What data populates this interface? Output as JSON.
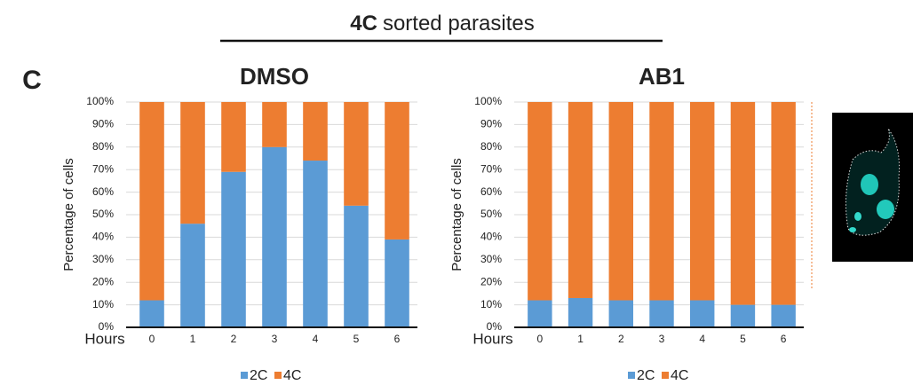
{
  "header": {
    "bold": "4C",
    "text": "sorted parasites"
  },
  "panel_label": "C",
  "chart_data": [
    {
      "type": "stacked_bar",
      "title": "DMSO",
      "y_label": "Percentage of cells",
      "x_label": "Hours",
      "categories": [
        "0",
        "1",
        "2",
        "3",
        "4",
        "5",
        "6"
      ],
      "series": [
        {
          "name": "2C",
          "color": "#5b9bd5",
          "values": [
            12,
            46,
            69,
            80,
            74,
            54,
            39
          ]
        },
        {
          "name": "4C",
          "color": "#ed7d31",
          "values": [
            88,
            54,
            31,
            20,
            26,
            46,
            61
          ]
        }
      ],
      "ylim": [
        0,
        100
      ],
      "yticks": [
        {
          "value": 0,
          "label": "0%"
        },
        {
          "value": 10,
          "label": "10%"
        },
        {
          "value": 20,
          "label": "20%"
        },
        {
          "value": 30,
          "label": "30%"
        },
        {
          "value": 40,
          "label": "40%"
        },
        {
          "value": 50,
          "label": "50%"
        },
        {
          "value": 60,
          "label": "60%"
        },
        {
          "value": 70,
          "label": "70%"
        },
        {
          "value": 80,
          "label": "80%"
        },
        {
          "value": 90,
          "label": "90%"
        },
        {
          "value": 100,
          "label": "100%"
        }
      ],
      "grid": true,
      "legend": "bottom"
    },
    {
      "type": "stacked_bar",
      "title": "AB1",
      "y_label": "Percentage of cells",
      "x_label": "Hours",
      "categories": [
        "0",
        "1",
        "2",
        "3",
        "4",
        "5",
        "6"
      ],
      "series": [
        {
          "name": "2C",
          "color": "#5b9bd5",
          "values": [
            12,
            13,
            12,
            12,
            12,
            10,
            10
          ]
        },
        {
          "name": "4C",
          "color": "#ed7d31",
          "values": [
            88,
            87,
            88,
            88,
            88,
            90,
            90
          ]
        }
      ],
      "ylim": [
        0,
        100
      ],
      "yticks": [
        {
          "value": 0,
          "label": "0%"
        },
        {
          "value": 10,
          "label": "10%"
        },
        {
          "value": 20,
          "label": "20%"
        },
        {
          "value": 30,
          "label": "30%"
        },
        {
          "value": 40,
          "label": "40%"
        },
        {
          "value": 50,
          "label": "50%"
        },
        {
          "value": 60,
          "label": "60%"
        },
        {
          "value": 70,
          "label": "70%"
        },
        {
          "value": 80,
          "label": "80%"
        },
        {
          "value": 90,
          "label": "90%"
        },
        {
          "value": 100,
          "label": "100%"
        }
      ],
      "grid": true,
      "legend": "bottom"
    }
  ]
}
